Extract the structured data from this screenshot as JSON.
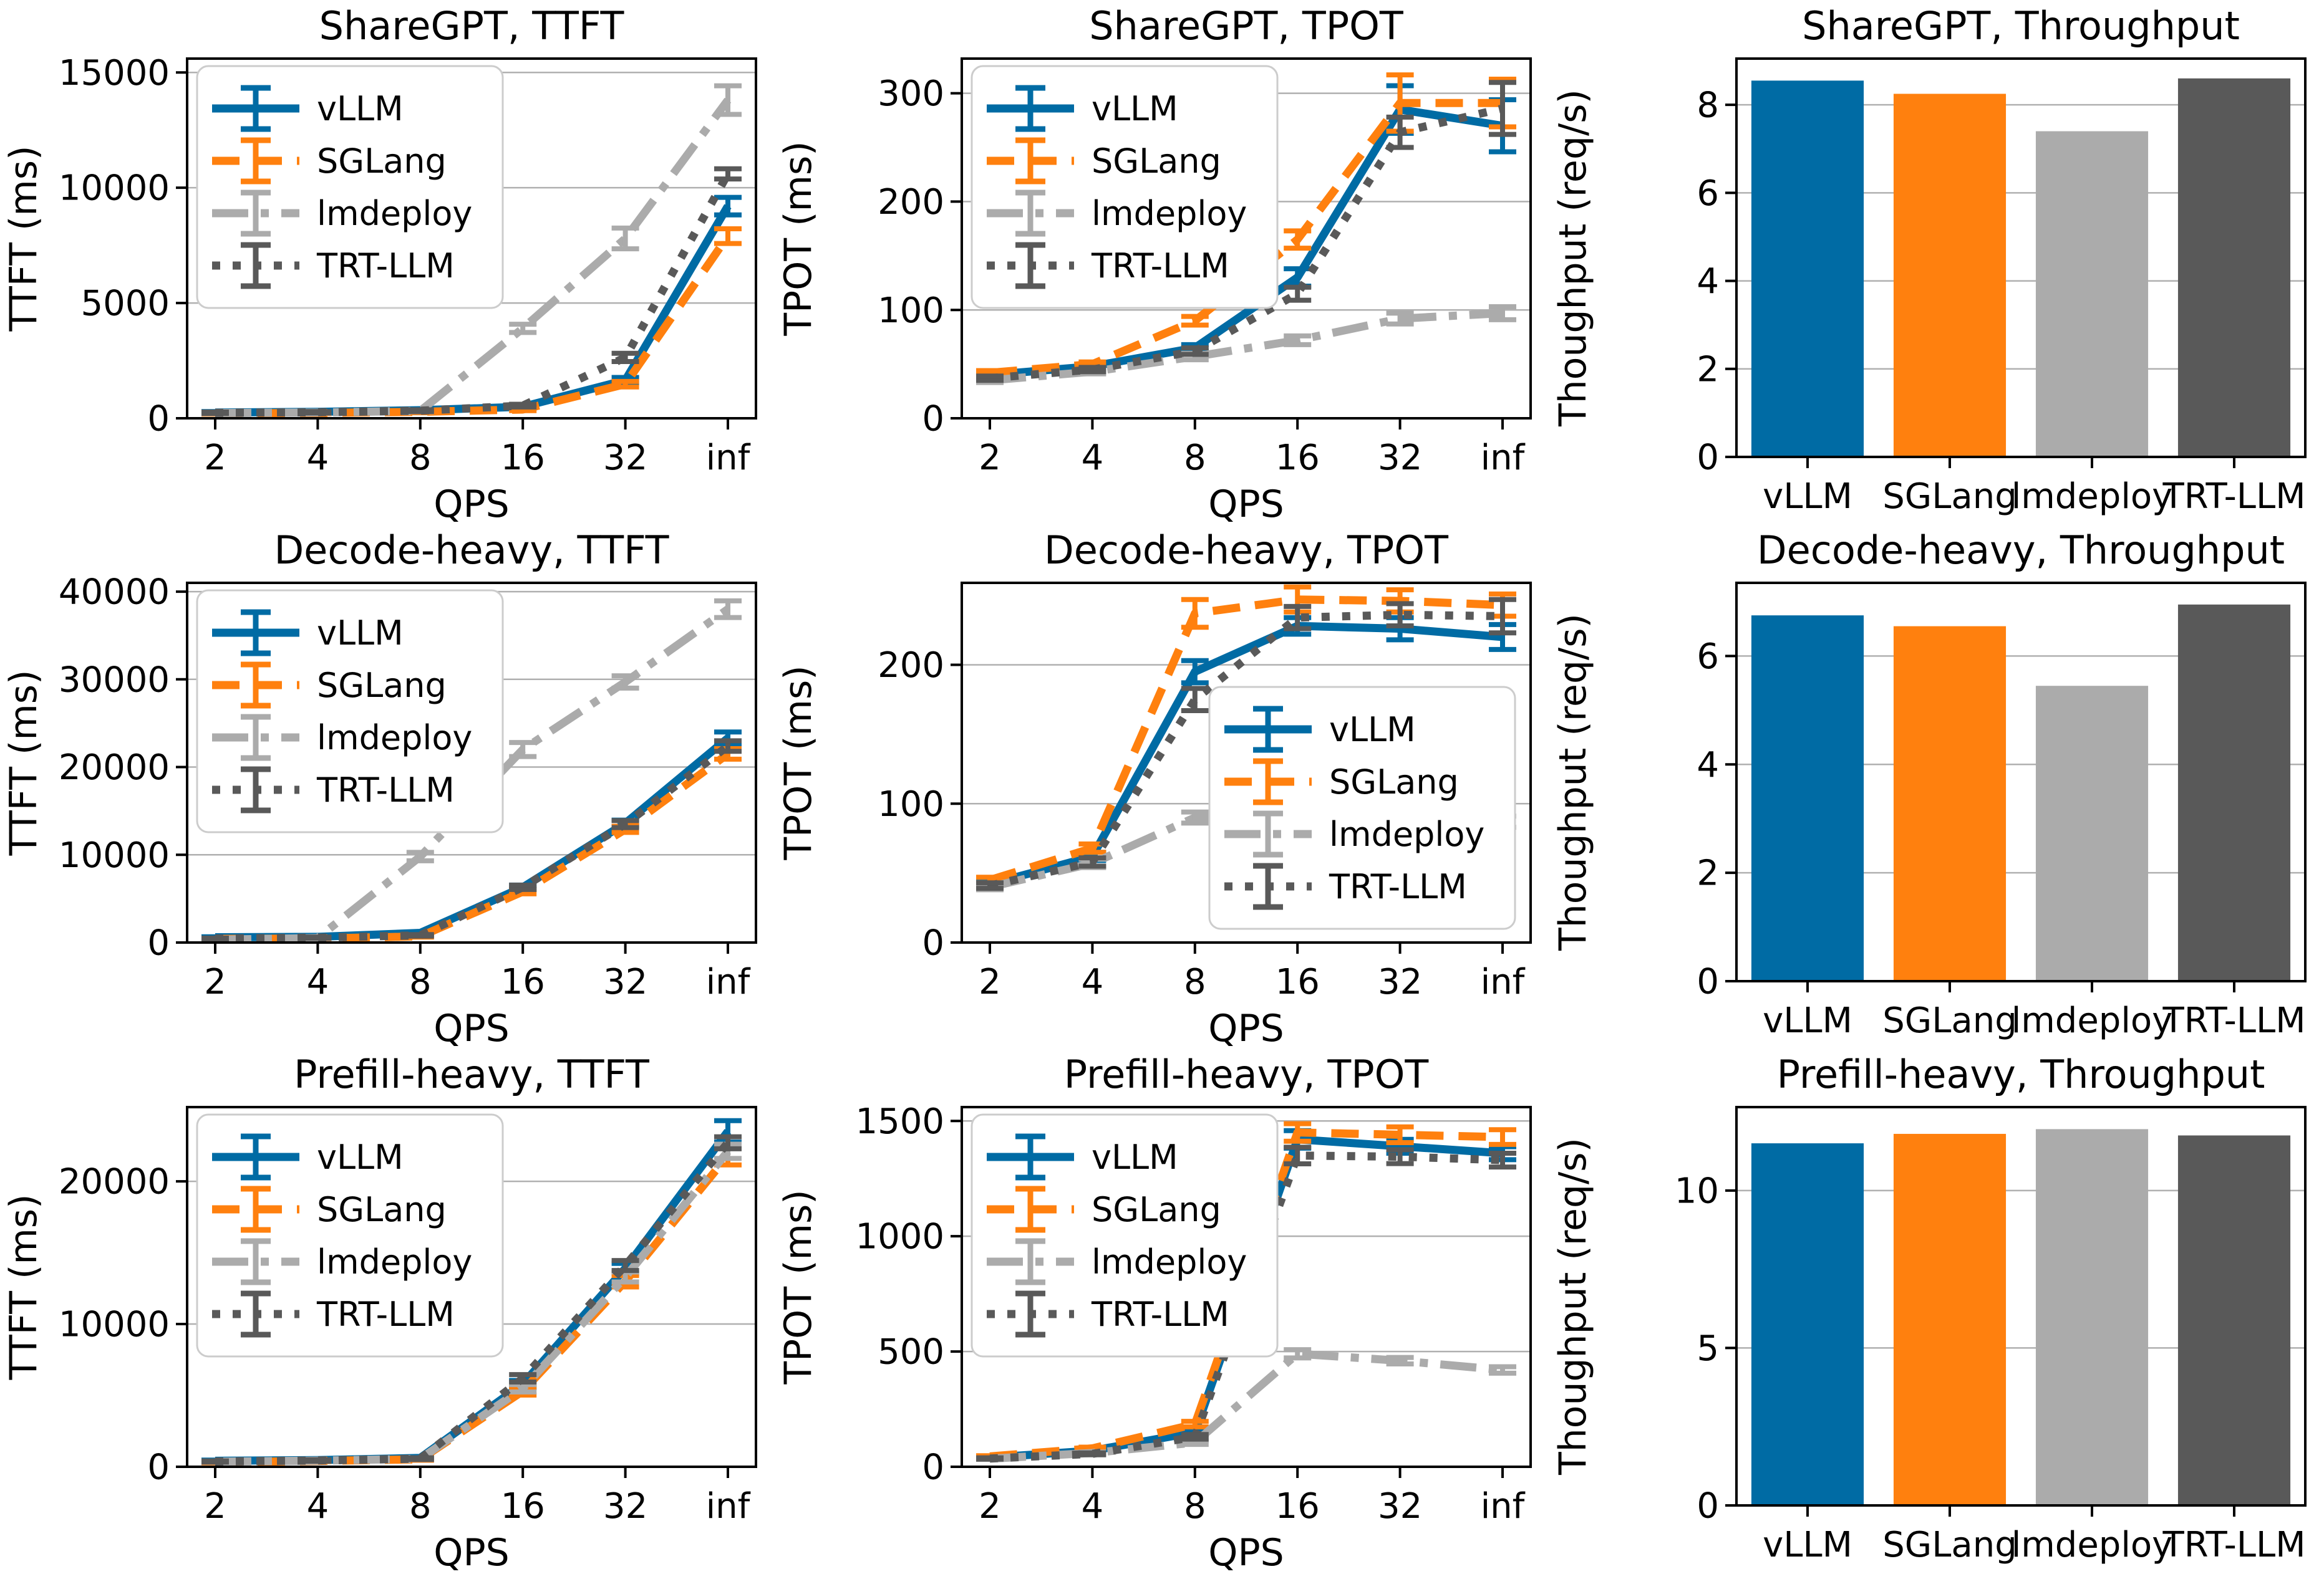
{
  "figure": {
    "background": "#ffffff",
    "grid_color": "#b0b0b0",
    "spine_color": "#000000",
    "legend_border_color": "#cccccc"
  },
  "systems": [
    {
      "name": "vLLM",
      "color": "#006BA4",
      "linestyle": "solid"
    },
    {
      "name": "SGLang",
      "color": "#FF800E",
      "linestyle": "dashed"
    },
    {
      "name": "lmdeploy",
      "color": "#ABABAB",
      "linestyle": "dashdot"
    },
    {
      "name": "TRT-LLM",
      "color": "#595959",
      "linestyle": "dotted"
    }
  ],
  "chart_data": [
    {
      "type": "line",
      "title": "ShareGPT, TTFT",
      "xlabel": "QPS",
      "ylabel": "TTFT (ms)",
      "x": [
        "2",
        "4",
        "8",
        "16",
        "32",
        "inf"
      ],
      "yticks": [
        0,
        5000,
        10000,
        15000
      ],
      "ylim": [
        0,
        15600
      ],
      "legend": "upper-left",
      "grid": true,
      "series": [
        {
          "name": "vLLM",
          "values": [
            250,
            280,
            350,
            500,
            1650,
            9200
          ],
          "errors": [
            40,
            40,
            40,
            60,
            120,
            380
          ]
        },
        {
          "name": "SGLang",
          "values": [
            210,
            230,
            280,
            380,
            1480,
            7900
          ],
          "errors": [
            30,
            30,
            40,
            50,
            120,
            320
          ]
        },
        {
          "name": "lmdeploy",
          "values": [
            230,
            250,
            320,
            3900,
            7800,
            13800
          ],
          "errors": [
            30,
            30,
            40,
            180,
            450,
            620
          ]
        },
        {
          "name": "TRT-LLM",
          "values": [
            240,
            260,
            330,
            550,
            2640,
            10600
          ],
          "errors": [
            30,
            30,
            40,
            60,
            180,
            220
          ]
        }
      ]
    },
    {
      "type": "line",
      "title": "ShareGPT, TPOT",
      "xlabel": "QPS",
      "ylabel": "TPOT (ms)",
      "x": [
        "2",
        "4",
        "8",
        "16",
        "32",
        "inf"
      ],
      "yticks": [
        0,
        100,
        200,
        300
      ],
      "ylim": [
        0,
        332
      ],
      "legend": "upper-left",
      "grid": true,
      "series": [
        {
          "name": "vLLM",
          "values": [
            40,
            48,
            65,
            130,
            285,
            270
          ],
          "errors": [
            2,
            2,
            3,
            8,
            22,
            24
          ]
        },
        {
          "name": "SGLang",
          "values": [
            42,
            50,
            90,
            165,
            291,
            291
          ],
          "errors": [
            2,
            2,
            4,
            8,
            26,
            22
          ]
        },
        {
          "name": "lmdeploy",
          "values": [
            35,
            43,
            57,
            72,
            92,
            97
          ],
          "errors": [
            2,
            2,
            3,
            4,
            5,
            6
          ]
        },
        {
          "name": "TRT-LLM",
          "values": [
            37,
            45,
            62,
            115,
            264,
            286
          ],
          "errors": [
            2,
            2,
            3,
            6,
            14,
            24
          ]
        }
      ]
    },
    {
      "type": "bar",
      "title": "ShareGPT, Throughput",
      "ylabel": "Thoughput (req/s)",
      "categories": [
        "vLLM",
        "SGLang",
        "lmdeploy",
        "TRT-LLM"
      ],
      "values": [
        8.55,
        8.25,
        7.4,
        8.6
      ],
      "yticks": [
        0,
        2,
        4,
        6,
        8
      ],
      "ylim": [
        0,
        9.05
      ],
      "grid": true
    },
    {
      "type": "line",
      "title": "Decode-heavy, TTFT",
      "xlabel": "QPS",
      "ylabel": "TTFT (ms)",
      "x": [
        "2",
        "4",
        "8",
        "16",
        "32",
        "inf"
      ],
      "yticks": [
        0,
        10000,
        20000,
        30000,
        40000
      ],
      "ylim": [
        0,
        41000
      ],
      "legend": "upper-left",
      "grid": true,
      "series": [
        {
          "name": "vLLM",
          "values": [
            600,
            650,
            1100,
            6300,
            13600,
            23300
          ],
          "errors": [
            60,
            60,
            100,
            250,
            350,
            700
          ]
        },
        {
          "name": "SGLang",
          "values": [
            420,
            460,
            700,
            5800,
            12900,
            21500
          ],
          "errors": [
            50,
            50,
            80,
            250,
            350,
            600
          ]
        },
        {
          "name": "lmdeploy",
          "values": [
            320,
            520,
            9800,
            22000,
            29700,
            38000
          ],
          "errors": [
            50,
            70,
            480,
            800,
            700,
            950
          ]
        },
        {
          "name": "TRT-LLM",
          "values": [
            460,
            560,
            820,
            6300,
            13500,
            22400
          ],
          "errors": [
            50,
            60,
            90,
            250,
            400,
            600
          ]
        }
      ]
    },
    {
      "type": "line",
      "title": "Decode-heavy, TPOT",
      "xlabel": "QPS",
      "ylabel": "TPOT (ms)",
      "x": [
        "2",
        "4",
        "8",
        "16",
        "32",
        "inf"
      ],
      "yticks": [
        0,
        100,
        200
      ],
      "ylim": [
        0,
        259
      ],
      "legend": "lower-right",
      "grid": true,
      "series": [
        {
          "name": "vLLM",
          "values": [
            42,
            62,
            195,
            228,
            226,
            220
          ],
          "errors": [
            2,
            3,
            8,
            6,
            8,
            9
          ]
        },
        {
          "name": "SGLang",
          "values": [
            45,
            68,
            237,
            247,
            246,
            243
          ],
          "errors": [
            2,
            3,
            10,
            9,
            8,
            8
          ]
        },
        {
          "name": "lmdeploy",
          "values": [
            40,
            57,
            90,
            89,
            88,
            87
          ],
          "errors": [
            2,
            3,
            4,
            4,
            4,
            4
          ]
        },
        {
          "name": "TRT-LLM",
          "values": [
            41,
            58,
            175,
            234,
            236,
            235
          ],
          "errors": [
            2,
            3,
            8,
            8,
            8,
            12
          ]
        }
      ]
    },
    {
      "type": "bar",
      "title": "Decode-heavy, Throughput",
      "ylabel": "Thoughput (req/s)",
      "categories": [
        "vLLM",
        "SGLang",
        "lmdeploy",
        "TRT-LLM"
      ],
      "values": [
        6.75,
        6.55,
        5.45,
        6.95
      ],
      "yticks": [
        0,
        2,
        4,
        6
      ],
      "ylim": [
        0,
        7.35
      ],
      "grid": true
    },
    {
      "type": "line",
      "title": "Prefill-heavy, TTFT",
      "xlabel": "QPS",
      "ylabel": "TTFT (ms)",
      "x": [
        "2",
        "4",
        "8",
        "16",
        "32",
        "inf"
      ],
      "yticks": [
        0,
        10000,
        20000
      ],
      "ylim": [
        0,
        25200
      ],
      "legend": "upper-left",
      "grid": true,
      "series": [
        {
          "name": "vLLM",
          "values": [
            420,
            470,
            620,
            5800,
            13900,
            23500
          ],
          "errors": [
            50,
            50,
            70,
            250,
            350,
            750
          ]
        },
        {
          "name": "SGLang",
          "values": [
            320,
            410,
            520,
            5300,
            13000,
            21800
          ],
          "errors": [
            40,
            50,
            60,
            280,
            400,
            650
          ]
        },
        {
          "name": "lmdeploy",
          "values": [
            360,
            430,
            560,
            5500,
            13300,
            22100
          ],
          "errors": [
            40,
            50,
            60,
            260,
            350,
            500
          ]
        },
        {
          "name": "TRT-LLM",
          "values": [
            370,
            440,
            570,
            6200,
            14100,
            22700
          ],
          "errors": [
            40,
            50,
            60,
            260,
            350,
            420
          ]
        }
      ]
    },
    {
      "type": "line",
      "title": "Prefill-heavy, TPOT",
      "xlabel": "QPS",
      "ylabel": "TPOT (ms)",
      "x": [
        "2",
        "4",
        "8",
        "16",
        "32",
        "inf"
      ],
      "yticks": [
        0,
        500,
        1000,
        1500
      ],
      "ylim": [
        0,
        1560
      ],
      "legend": "upper-left",
      "grid": true,
      "series": [
        {
          "name": "vLLM",
          "values": [
            40,
            70,
            150,
            1420,
            1390,
            1360
          ],
          "errors": [
            3,
            4,
            10,
            38,
            30,
            28
          ]
        },
        {
          "name": "SGLang",
          "values": [
            45,
            80,
            185,
            1450,
            1440,
            1430
          ],
          "errors": [
            3,
            5,
            12,
            38,
            34,
            32
          ]
        },
        {
          "name": "lmdeploy",
          "values": [
            35,
            60,
            105,
            490,
            460,
            420
          ],
          "errors": [
            3,
            4,
            8,
            18,
            14,
            14
          ]
        },
        {
          "name": "TRT-LLM",
          "values": [
            36,
            56,
            130,
            1350,
            1345,
            1330
          ],
          "errors": [
            3,
            4,
            10,
            36,
            30,
            30
          ]
        }
      ]
    },
    {
      "type": "bar",
      "title": "Prefill-heavy, Throughput",
      "ylabel": "Thoughput (req/s)",
      "categories": [
        "vLLM",
        "SGLang",
        "lmdeploy",
        "TRT-LLM"
      ],
      "values": [
        11.5,
        11.8,
        11.95,
        11.75
      ],
      "yticks": [
        0,
        5,
        10
      ],
      "ylim": [
        0,
        12.65
      ],
      "grid": true
    }
  ]
}
